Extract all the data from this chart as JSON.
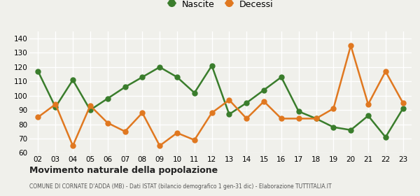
{
  "years": [
    "02",
    "03",
    "04",
    "05",
    "06",
    "07",
    "08",
    "09",
    "10",
    "11",
    "12",
    "13",
    "14",
    "15",
    "16",
    "17",
    "18",
    "19",
    "20",
    "21",
    "22",
    "23"
  ],
  "nascite": [
    117,
    92,
    111,
    90,
    98,
    106,
    113,
    120,
    113,
    102,
    121,
    87,
    95,
    104,
    113,
    89,
    84,
    78,
    76,
    86,
    71,
    91
  ],
  "decessi": [
    85,
    94,
    65,
    93,
    81,
    75,
    88,
    65,
    74,
    69,
    88,
    97,
    84,
    96,
    84,
    84,
    84,
    91,
    135,
    94,
    117,
    95
  ],
  "nascite_color": "#3a7d2c",
  "decessi_color": "#e07820",
  "bg_color": "#f0f0eb",
  "grid_color": "#ffffff",
  "ylim": [
    60,
    145
  ],
  "yticks": [
    60,
    70,
    80,
    90,
    100,
    110,
    120,
    130,
    140
  ],
  "title": "Movimento naturale della popolazione",
  "subtitle": "COMUNE DI CORNATE D'ADDA (MB) - Dati ISTAT (bilancio demografico 1 gen-31 dic) - Elaborazione TUTTITALIA.IT",
  "legend_nascite": "Nascite",
  "legend_decessi": "Decessi",
  "marker_size": 5,
  "line_width": 1.8
}
